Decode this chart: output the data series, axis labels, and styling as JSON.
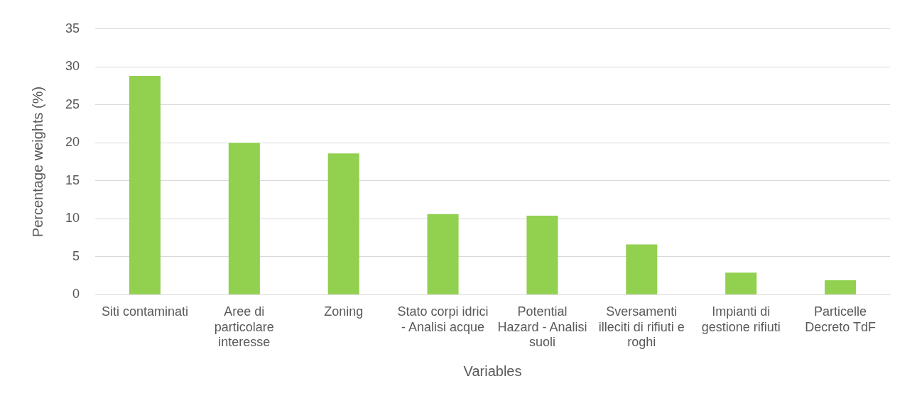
{
  "chart_data": {
    "type": "bar",
    "xlabel": "Variables",
    "ylabel": "Percentage weights (%)",
    "categories": [
      "Siti contaminati",
      "Aree di particolare interesse",
      "Zoning",
      "Stato corpi idrici - Analisi acque",
      "Potential Hazard - Analisi suoli",
      "Sversamenti illeciti di rifiuti e roghi",
      "Impianti di gestione rifiuti",
      "Particelle Decreto TdF"
    ],
    "values": [
      28.8,
      20.0,
      18.6,
      10.6,
      10.4,
      6.6,
      2.9,
      1.9
    ],
    "color": "#92d050",
    "ylim": [
      0,
      35
    ],
    "yticks": [
      0,
      5,
      10,
      15,
      20,
      25,
      30,
      35
    ],
    "grid": "y",
    "legend": false
  }
}
